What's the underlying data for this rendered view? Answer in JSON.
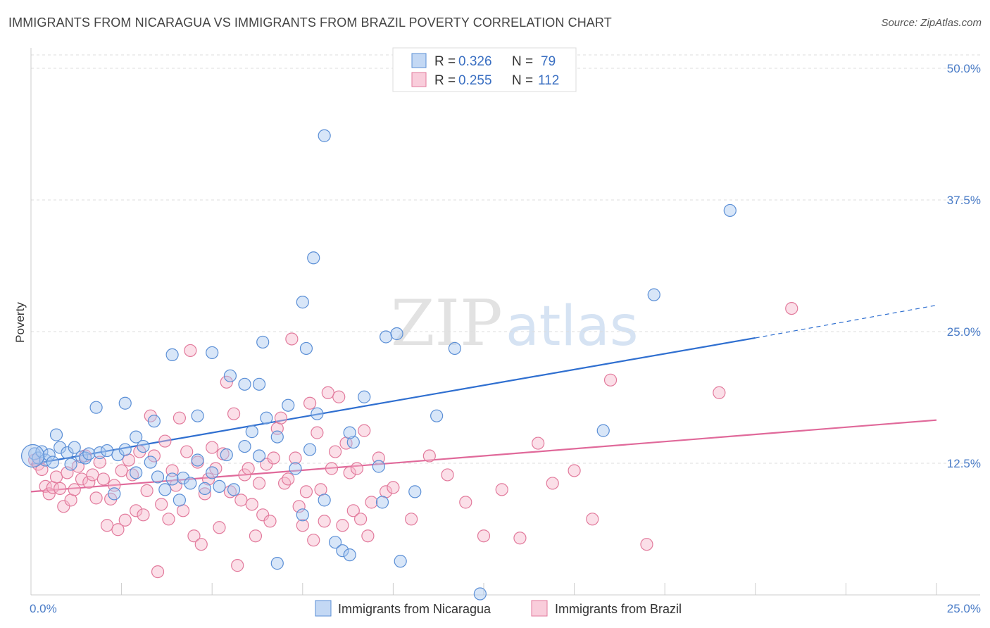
{
  "header": {
    "title": "IMMIGRANTS FROM NICARAGUA VS IMMIGRANTS FROM BRAZIL POVERTY CORRELATION CHART",
    "source": "Source: ZipAtlas.com"
  },
  "watermark": {
    "zip": "ZIP",
    "atlas": "atlas"
  },
  "colors": {
    "blue_fill": "#a9c8f0",
    "blue_stroke": "#5b8fd6",
    "blue_line": "#2f6fd0",
    "pink_fill": "#f6b8cc",
    "pink_stroke": "#e27a9c",
    "pink_line": "#e0699a",
    "grid": "#dddddd",
    "tick_text": "#4a7cc7"
  },
  "legend": {
    "r_label": "R =",
    "n_label": "N =",
    "series": [
      {
        "r": "0.326",
        "n": "79"
      },
      {
        "r": "0.255",
        "n": "112"
      }
    ]
  },
  "chart_data": {
    "type": "scatter",
    "title": "IMMIGRANTS FROM NICARAGUA VS IMMIGRANTS FROM BRAZIL POVERTY CORRELATION CHART",
    "xlabel": "",
    "ylabel": "Poverty",
    "xlim": [
      0,
      25
    ],
    "ylim": [
      0,
      50
    ],
    "y_ticks": [
      {
        "value": 12.5,
        "label": "12.5%"
      },
      {
        "value": 25.0,
        "label": "25.0%"
      },
      {
        "value": 37.5,
        "label": "37.5%"
      },
      {
        "value": 50.0,
        "label": "50.0%"
      }
    ],
    "x_tick_labels": {
      "min": "0.0%",
      "max": "25.0%"
    },
    "grid": true,
    "legend_position": "top-center",
    "series": [
      {
        "name": "Immigrants from Nicaragua",
        "color": "#5b8fd6",
        "trend": {
          "x0": 0,
          "y0": 12.4,
          "x1": 20,
          "y1": 24.4,
          "dashed_to_x": 25,
          "dashed_to_y": 27.5
        },
        "points": [
          [
            0.1,
            13.4
          ],
          [
            0.2,
            13.0
          ],
          [
            0.3,
            13.6
          ],
          [
            0.4,
            12.8
          ],
          [
            0.5,
            13.3
          ],
          [
            0.6,
            12.6
          ],
          [
            0.7,
            15.2
          ],
          [
            0.8,
            14.0
          ],
          [
            1.0,
            13.5
          ],
          [
            1.1,
            12.4
          ],
          [
            1.2,
            14.0
          ],
          [
            1.4,
            13.1
          ],
          [
            1.5,
            13.0
          ],
          [
            1.6,
            13.4
          ],
          [
            1.8,
            17.8
          ],
          [
            1.9,
            13.5
          ],
          [
            2.1,
            13.7
          ],
          [
            2.3,
            9.6
          ],
          [
            2.4,
            13.3
          ],
          [
            2.6,
            13.8
          ],
          [
            2.9,
            11.6
          ],
          [
            3.1,
            14.1
          ],
          [
            3.3,
            12.6
          ],
          [
            3.5,
            11.2
          ],
          [
            3.7,
            10.0
          ],
          [
            3.9,
            11.0
          ],
          [
            4.1,
            9.0
          ],
          [
            4.2,
            11.1
          ],
          [
            4.4,
            10.6
          ],
          [
            4.6,
            12.8
          ],
          [
            4.8,
            10.1
          ],
          [
            5.0,
            11.6
          ],
          [
            5.2,
            10.3
          ],
          [
            5.4,
            13.3
          ],
          [
            5.6,
            10.0
          ],
          [
            5.9,
            14.1
          ],
          [
            6.1,
            15.5
          ],
          [
            6.3,
            13.2
          ],
          [
            6.5,
            16.8
          ],
          [
            6.8,
            15.0
          ],
          [
            7.1,
            18.0
          ],
          [
            7.3,
            12.0
          ],
          [
            7.5,
            7.6
          ],
          [
            7.7,
            13.8
          ],
          [
            7.9,
            17.2
          ],
          [
            8.1,
            9.0
          ],
          [
            8.4,
            5.0
          ],
          [
            8.6,
            4.2
          ],
          [
            8.8,
            3.8
          ],
          [
            8.9,
            14.5
          ],
          [
            3.4,
            16.5
          ],
          [
            4.6,
            17.0
          ],
          [
            2.9,
            15.0
          ],
          [
            5.9,
            20.0
          ],
          [
            6.4,
            24.0
          ],
          [
            5.0,
            23.0
          ],
          [
            3.9,
            22.8
          ],
          [
            5.5,
            20.8
          ],
          [
            6.3,
            20.0
          ],
          [
            7.5,
            27.8
          ],
          [
            7.6,
            23.4
          ],
          [
            9.2,
            18.8
          ],
          [
            9.7,
            8.8
          ],
          [
            9.6,
            12.2
          ],
          [
            9.8,
            24.5
          ],
          [
            10.1,
            24.8
          ],
          [
            10.2,
            3.2
          ],
          [
            10.6,
            9.8
          ],
          [
            11.2,
            17.0
          ],
          [
            11.7,
            23.4
          ],
          [
            12.4,
            0.1
          ],
          [
            8.1,
            43.6
          ],
          [
            7.8,
            32.0
          ],
          [
            15.8,
            15.6
          ],
          [
            17.2,
            28.5
          ],
          [
            19.3,
            36.5
          ],
          [
            8.8,
            15.4
          ],
          [
            6.8,
            3.0
          ],
          [
            2.6,
            18.2
          ]
        ]
      },
      {
        "name": "Immigrants from Brazil",
        "color": "#e27a9c",
        "trend": {
          "x0": 0,
          "y0": 9.8,
          "x1": 25,
          "y1": 16.6
        },
        "points": [
          [
            0.1,
            12.8
          ],
          [
            0.2,
            12.4
          ],
          [
            0.3,
            11.9
          ],
          [
            0.4,
            10.3
          ],
          [
            0.5,
            9.6
          ],
          [
            0.6,
            10.2
          ],
          [
            0.7,
            11.2
          ],
          [
            0.8,
            10.1
          ],
          [
            0.9,
            8.4
          ],
          [
            1.0,
            11.6
          ],
          [
            1.1,
            9.0
          ],
          [
            1.2,
            10.0
          ],
          [
            1.3,
            12.2
          ],
          [
            1.4,
            11.0
          ],
          [
            1.5,
            13.2
          ],
          [
            1.6,
            10.7
          ],
          [
            1.7,
            11.4
          ],
          [
            1.8,
            9.2
          ],
          [
            1.9,
            12.6
          ],
          [
            2.0,
            11.0
          ],
          [
            2.1,
            6.6
          ],
          [
            2.2,
            9.1
          ],
          [
            2.3,
            10.4
          ],
          [
            2.4,
            6.2
          ],
          [
            2.5,
            11.8
          ],
          [
            2.6,
            7.1
          ],
          [
            2.7,
            12.8
          ],
          [
            2.8,
            11.4
          ],
          [
            2.9,
            8.0
          ],
          [
            3.0,
            13.6
          ],
          [
            3.1,
            7.6
          ],
          [
            3.2,
            9.9
          ],
          [
            3.3,
            17.0
          ],
          [
            3.4,
            13.2
          ],
          [
            3.5,
            2.2
          ],
          [
            3.6,
            8.6
          ],
          [
            3.7,
            14.6
          ],
          [
            3.8,
            7.2
          ],
          [
            3.9,
            11.8
          ],
          [
            4.0,
            10.4
          ],
          [
            4.1,
            16.8
          ],
          [
            4.2,
            8.0
          ],
          [
            4.3,
            13.6
          ],
          [
            4.4,
            23.2
          ],
          [
            4.5,
            5.6
          ],
          [
            4.6,
            12.6
          ],
          [
            4.7,
            4.8
          ],
          [
            4.8,
            9.6
          ],
          [
            4.9,
            11.0
          ],
          [
            5.0,
            14.0
          ],
          [
            5.1,
            12.0
          ],
          [
            5.2,
            6.4
          ],
          [
            5.3,
            13.4
          ],
          [
            5.4,
            20.2
          ],
          [
            5.5,
            9.8
          ],
          [
            5.6,
            17.2
          ],
          [
            5.7,
            2.8
          ],
          [
            5.8,
            9.0
          ],
          [
            5.9,
            11.4
          ],
          [
            6.0,
            12.0
          ],
          [
            6.1,
            8.6
          ],
          [
            6.2,
            5.6
          ],
          [
            6.3,
            10.6
          ],
          [
            6.4,
            7.6
          ],
          [
            6.5,
            12.4
          ],
          [
            6.6,
            7.0
          ],
          [
            6.7,
            13.0
          ],
          [
            6.8,
            15.8
          ],
          [
            6.9,
            16.8
          ],
          [
            7.0,
            10.6
          ],
          [
            7.1,
            11.0
          ],
          [
            7.2,
            24.3
          ],
          [
            7.3,
            13.0
          ],
          [
            7.4,
            8.4
          ],
          [
            7.5,
            6.6
          ],
          [
            7.6,
            9.8
          ],
          [
            7.7,
            18.2
          ],
          [
            7.8,
            5.2
          ],
          [
            7.9,
            15.4
          ],
          [
            8.0,
            10.0
          ],
          [
            8.1,
            7.0
          ],
          [
            8.2,
            19.2
          ],
          [
            8.3,
            12.0
          ],
          [
            8.4,
            13.6
          ],
          [
            8.5,
            18.8
          ],
          [
            8.6,
            6.6
          ],
          [
            8.7,
            14.4
          ],
          [
            8.8,
            11.6
          ],
          [
            8.9,
            8.0
          ],
          [
            9.0,
            12.0
          ],
          [
            9.1,
            7.2
          ],
          [
            9.2,
            15.6
          ],
          [
            9.3,
            5.6
          ],
          [
            9.4,
            8.8
          ],
          [
            9.6,
            13.0
          ],
          [
            9.8,
            9.8
          ],
          [
            10.0,
            10.2
          ],
          [
            10.5,
            7.2
          ],
          [
            11.0,
            13.2
          ],
          [
            11.5,
            11.4
          ],
          [
            12.0,
            8.8
          ],
          [
            12.5,
            5.6
          ],
          [
            13.0,
            10.0
          ],
          [
            13.5,
            5.4
          ],
          [
            14.0,
            14.4
          ],
          [
            14.4,
            10.6
          ],
          [
            15.0,
            11.8
          ],
          [
            15.5,
            7.2
          ],
          [
            16.0,
            20.4
          ],
          [
            17.0,
            4.8
          ],
          [
            19.0,
            19.2
          ],
          [
            21.0,
            27.2
          ]
        ]
      }
    ]
  },
  "bottom_legend": {
    "items": [
      "Immigrants from Nicaragua",
      "Immigrants from Brazil"
    ]
  }
}
